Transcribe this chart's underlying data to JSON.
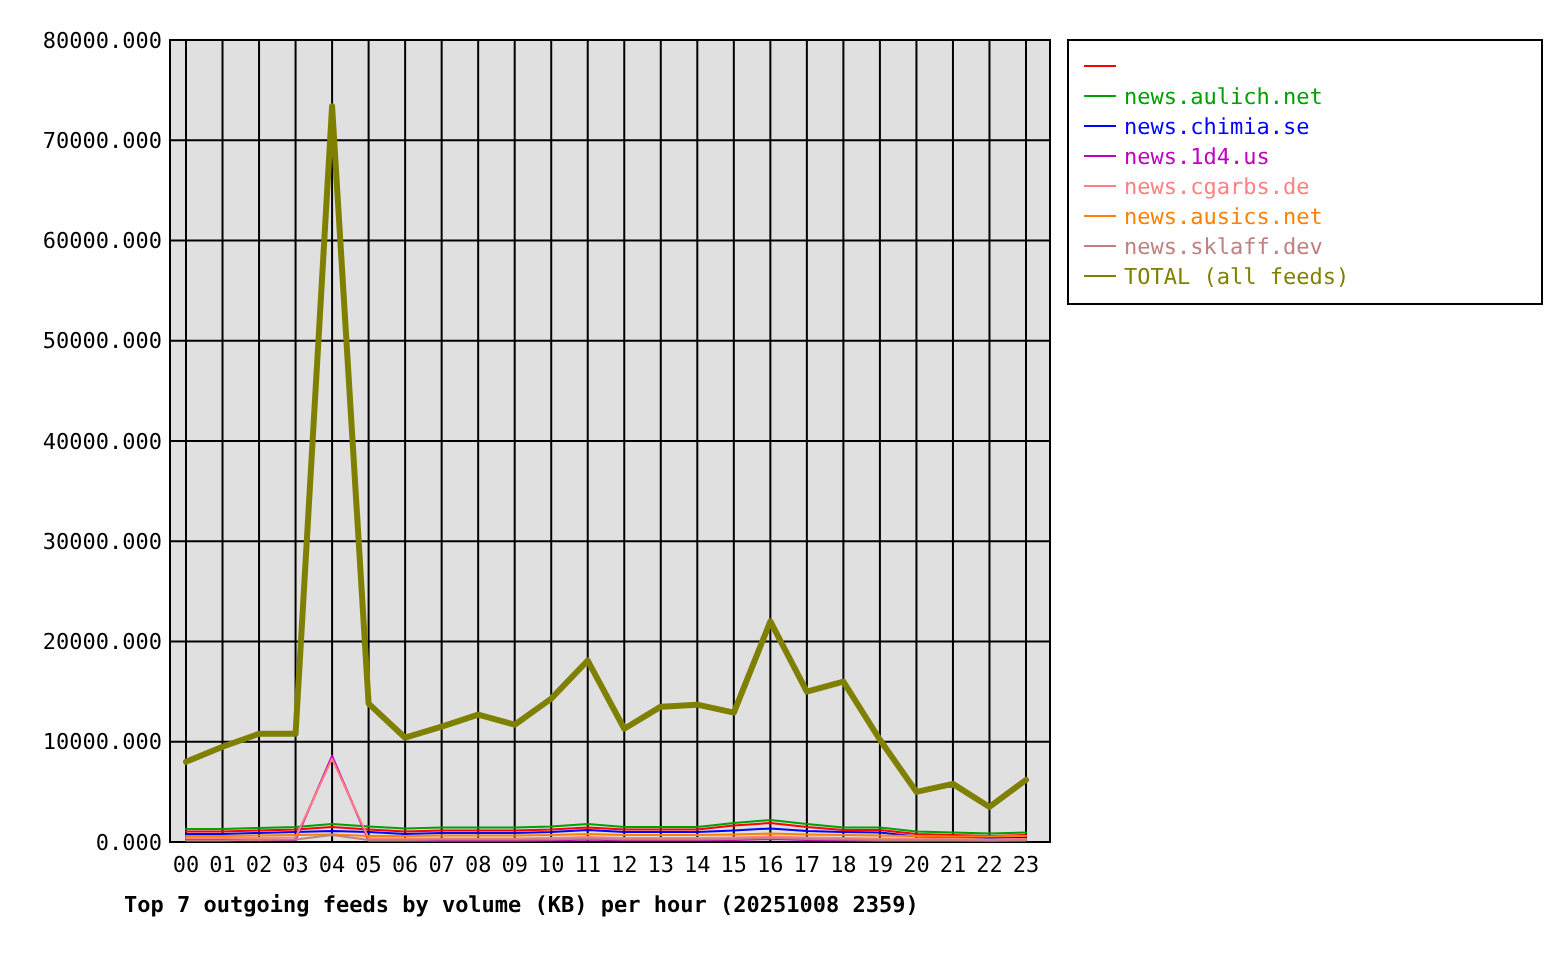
{
  "chart_data": {
    "type": "line",
    "title": "Top 7 outgoing feeds by volume (KB) per hour (20251008 2359)",
    "categories": [
      "00",
      "01",
      "02",
      "03",
      "04",
      "05",
      "06",
      "07",
      "08",
      "09",
      "10",
      "11",
      "12",
      "13",
      "14",
      "15",
      "16",
      "17",
      "18",
      "19",
      "20",
      "21",
      "22",
      "23"
    ],
    "ylim": [
      0,
      80000
    ],
    "yticks": [
      {
        "value": 0,
        "label": "0.000"
      },
      {
        "value": 10000,
        "label": "10000.000"
      },
      {
        "value": 20000,
        "label": "20000.000"
      },
      {
        "value": 30000,
        "label": "30000.000"
      },
      {
        "value": 40000,
        "label": "40000.000"
      },
      {
        "value": 50000,
        "label": "50000.000"
      },
      {
        "value": 60000,
        "label": "60000.000"
      },
      {
        "value": 70000,
        "label": "70000.000"
      },
      {
        "value": 80000,
        "label": "80000.000"
      }
    ],
    "grid": true,
    "legend": "right",
    "marker": "none",
    "line_style": "solid",
    "series": [
      {
        "color": "#ff0000",
        "values": [
          1050,
          1050,
          1150,
          1250,
          1500,
          1250,
          1050,
          1150,
          1150,
          1150,
          1250,
          1450,
          1250,
          1250,
          1250,
          1650,
          1900,
          1500,
          1200,
          1200,
          800,
          700,
          600,
          700
        ]
      },
      {
        "name": "news.aulich.net",
        "color": "#00a000",
        "values": [
          1300,
          1300,
          1400,
          1500,
          1800,
          1550,
          1350,
          1450,
          1450,
          1450,
          1550,
          1800,
          1500,
          1500,
          1500,
          1900,
          2200,
          1800,
          1450,
          1450,
          1050,
          950,
          850,
          950
        ]
      },
      {
        "name": "news.chimia.se",
        "color": "#0000ff",
        "values": [
          800,
          800,
          900,
          1000,
          1100,
          1000,
          800,
          900,
          900,
          900,
          1000,
          1200,
          1000,
          1000,
          1000,
          1150,
          1350,
          1100,
          1000,
          950,
          550,
          450,
          400,
          450
        ]
      },
      {
        "name": "news.1d4.us",
        "color": "#c000c0",
        "values": [
          250,
          250,
          150,
          200,
          8600,
          100,
          100,
          100,
          100,
          100,
          150,
          250,
          150,
          150,
          150,
          200,
          300,
          200,
          150,
          100,
          100,
          100,
          100,
          100
        ]
      },
      {
        "name": "news.cgarbs.de",
        "color": "#ff8080",
        "values": [
          400,
          400,
          400,
          450,
          8300,
          350,
          350,
          350,
          350,
          350,
          400,
          500,
          400,
          400,
          400,
          450,
          550,
          450,
          400,
          350,
          350,
          350,
          250,
          300
        ]
      },
      {
        "name": "news.ausics.net",
        "color": "#ff8000",
        "values": [
          600,
          600,
          650,
          700,
          750,
          600,
          600,
          650,
          650,
          650,
          700,
          800,
          700,
          700,
          700,
          750,
          850,
          750,
          700,
          650,
          600,
          550,
          550,
          600
        ]
      },
      {
        "name": "news.sklaff.dev",
        "color": "#c08080",
        "values": [
          150,
          150,
          200,
          250,
          700,
          200,
          200,
          250,
          250,
          250,
          250,
          350,
          250,
          250,
          250,
          300,
          400,
          300,
          250,
          200,
          200,
          200,
          150,
          200
        ]
      },
      {
        "name": "TOTAL (all feeds)",
        "color": "#808000",
        "values": [
          8000,
          9500,
          10800,
          10800,
          73400,
          13800,
          10400,
          11500,
          12700,
          11700,
          14300,
          18100,
          11300,
          13500,
          13700,
          12900,
          22000,
          15000,
          16000,
          10200,
          5000,
          5800,
          3500,
          6200
        ]
      }
    ]
  }
}
